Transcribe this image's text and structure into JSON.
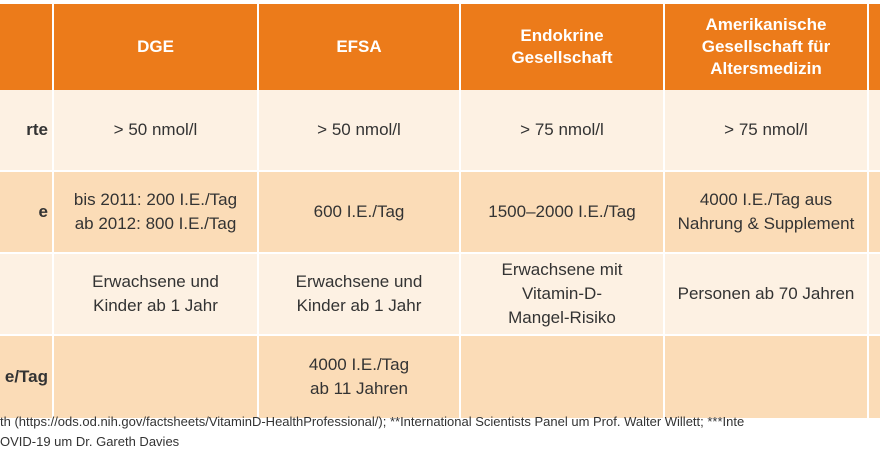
{
  "table": {
    "headers": [
      "",
      "DGE",
      "EFSA",
      "Endokrine\nGesellschaft",
      "Amerikanische\nGesellschaft für\nAltersmedizin"
    ],
    "rows": [
      {
        "label": "rte",
        "cells": [
          "> 50 nmol/l",
          "> 50 nmol/l",
          "> 75 nmol/l",
          "> 75 nmol/l"
        ]
      },
      {
        "label": "e",
        "cells": [
          "bis 2011: 200 I.E./Tag\nab 2012: 800 I.E./Tag",
          "600 I.E./Tag",
          "1500–2000 I.E./Tag",
          "4000 I.E./Tag aus\nNahrung & Supplement"
        ]
      },
      {
        "label": "",
        "cells": [
          "Erwachsene und\nKinder ab 1 Jahr",
          "Erwachsene und\nKinder ab 1 Jahr",
          "Erwachsene mit\nVitamin-D-\nMangel-Risiko",
          "Personen ab 70 Jahren"
        ]
      },
      {
        "label": "e/Tag",
        "cells": [
          "",
          "4000 I.E./Tag\nab 11 Jahren",
          "",
          ""
        ]
      }
    ]
  },
  "footnote": {
    "line1": "th (https://ods.od.nih.gov/factsheets/VitaminD-HealthProfessional/); **International Scientists Panel um Prof. Walter Willett; ***Inte",
    "line2": "OVID-19 um Dr. Gareth Davies"
  },
  "colors": {
    "header": "#ec7b1a",
    "row_light": "#fdf1e3",
    "row_dark": "#fbdcb7",
    "text": "#333333"
  }
}
